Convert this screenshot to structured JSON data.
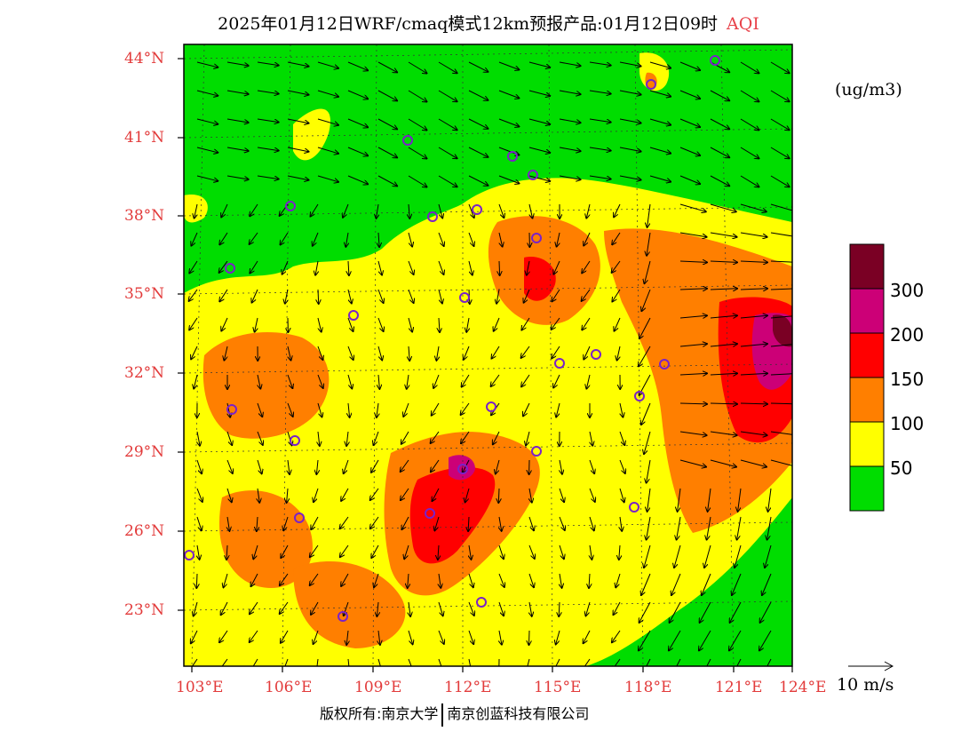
{
  "header": {
    "title": "2025年01月12日WRF/cmaq模式12km预报产品:01月12日09时",
    "variable": "AQI"
  },
  "map": {
    "lat_labels": [
      "44°N",
      "41°N",
      "38°N",
      "35°N",
      "32°N",
      "29°N",
      "26°N",
      "23°N"
    ],
    "lon_labels": [
      "103°E",
      "106°E",
      "109°E",
      "112°E",
      "115°E",
      "118°E",
      "121°E",
      "124°E"
    ],
    "lat_range": [
      21,
      44.5
    ],
    "lon_range": [
      102.5,
      124
    ]
  },
  "legend": {
    "units": "(ug/m3)",
    "bins": [
      {
        "label": "",
        "color": "#00dd00"
      },
      {
        "label": "50",
        "color": "#ffff00"
      },
      {
        "label": "100",
        "color": "#ff7f00"
      },
      {
        "label": "150",
        "color": "#ff0000"
      },
      {
        "label": "200",
        "color": "#cc0077"
      },
      {
        "label": "300",
        "color": "#7a0024"
      }
    ]
  },
  "wind_reference": {
    "label": "10 m/s"
  },
  "footer": {
    "left": "版权所有:南京大学",
    "right": "南京创蓝科技有限公司"
  }
}
